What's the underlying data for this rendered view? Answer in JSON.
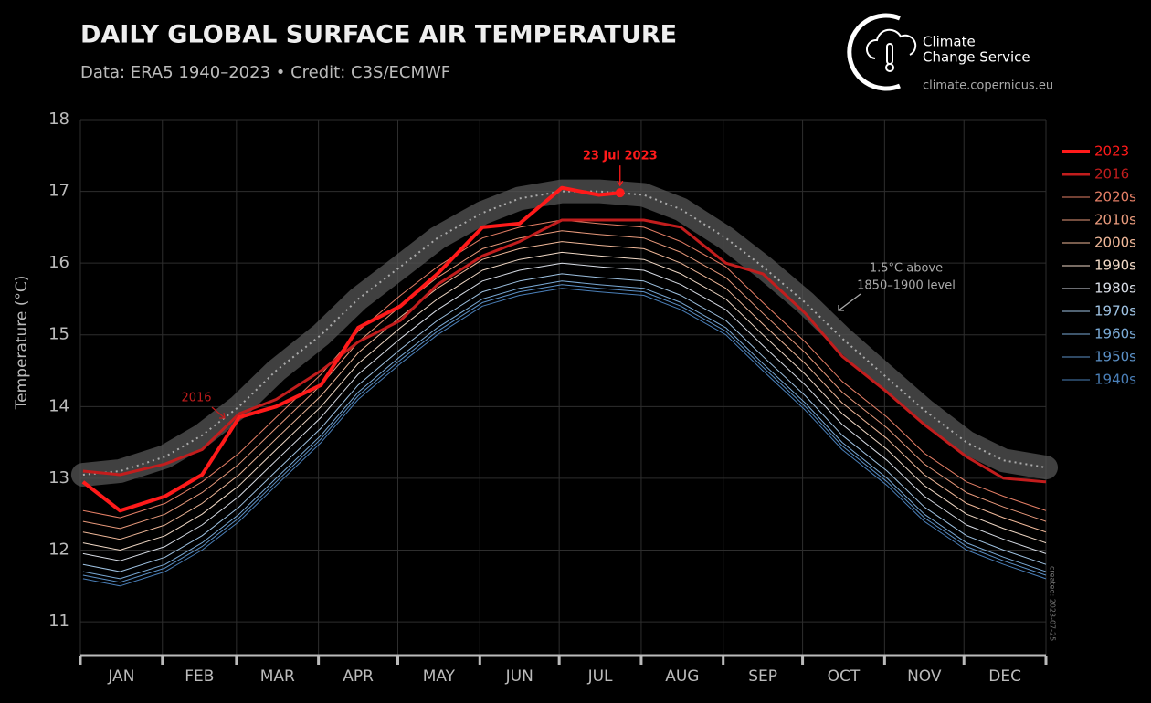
{
  "header": {
    "title": "DAILY GLOBAL SURFACE AIR TEMPERATURE",
    "subtitle": "Data: ERA5 1940–2023 • Credit: C3S/ECMWF",
    "logo_line1": "Climate",
    "logo_line2": "Change Service",
    "url": "climate.copernicus.eu",
    "created": "created: 2023-07-25"
  },
  "chart_data": {
    "type": "line",
    "y_label": "Temperature (°C)",
    "categories": [
      "JAN",
      "FEB",
      "MAR",
      "APR",
      "MAY",
      "JUN",
      "JUL",
      "AUG",
      "SEP",
      "OCT",
      "NOV",
      "DEC"
    ],
    "xlim": [
      0,
      365
    ],
    "xticks": [
      0,
      31,
      59,
      90,
      120,
      151,
      181,
      212,
      243,
      273,
      304,
      334,
      365
    ],
    "ylim": [
      10.53,
      18
    ],
    "yticks": [
      11,
      12,
      13,
      14,
      15,
      16,
      17,
      18
    ],
    "grid": true,
    "x": [
      1,
      15,
      32,
      46,
      60,
      74,
      91,
      105,
      121,
      135,
      152,
      166,
      182,
      196,
      213,
      227,
      244,
      258,
      274,
      288,
      305,
      319,
      335,
      349,
      365
    ],
    "threshold": {
      "label": [
        "1.5°C above",
        "1850–1900 level"
      ],
      "color": "#aaaaaa",
      "values": [
        13.05,
        13.1,
        13.3,
        13.6,
        14.0,
        14.5,
        15.0,
        15.5,
        15.95,
        16.35,
        16.7,
        16.9,
        17.0,
        17.0,
        16.95,
        16.75,
        16.35,
        15.95,
        15.45,
        14.95,
        14.4,
        13.95,
        13.5,
        13.25,
        13.15
      ]
    },
    "annotations": [
      {
        "text": "23 Jul 2023",
        "color": "#ff1a1a"
      },
      {
        "text": "2016",
        "color": "#c21d1d"
      }
    ],
    "series": [
      {
        "name": "2023",
        "color": "#ff1a1a",
        "width": 4,
        "x": [
          1,
          15,
          32,
          46,
          60,
          74,
          91,
          105,
          121,
          135,
          152,
          166,
          182,
          196,
          204
        ],
        "values": [
          12.95,
          12.55,
          12.75,
          13.05,
          13.85,
          14.0,
          14.3,
          15.1,
          15.4,
          15.85,
          16.5,
          16.55,
          17.05,
          16.95,
          16.98
        ]
      },
      {
        "name": "2016",
        "color": "#c21d1d",
        "width": 3,
        "values": [
          13.1,
          13.05,
          13.2,
          13.4,
          13.9,
          14.1,
          14.5,
          14.9,
          15.2,
          15.7,
          16.1,
          16.3,
          16.6,
          16.6,
          16.6,
          16.5,
          16.0,
          15.85,
          15.3,
          14.7,
          14.2,
          13.75,
          13.3,
          13.0,
          12.95
        ]
      },
      {
        "name": "2020s",
        "color": "#e57f66",
        "width": 1,
        "values": [
          12.55,
          12.45,
          12.65,
          12.95,
          13.35,
          13.85,
          14.45,
          15.05,
          15.55,
          15.95,
          16.35,
          16.5,
          16.6,
          16.55,
          16.5,
          16.3,
          15.95,
          15.45,
          14.9,
          14.35,
          13.85,
          13.35,
          12.95,
          12.75,
          12.55
        ]
      },
      {
        "name": "2010s",
        "color": "#e99a7c",
        "width": 1,
        "values": [
          12.4,
          12.3,
          12.5,
          12.8,
          13.2,
          13.7,
          14.3,
          14.9,
          15.4,
          15.8,
          16.2,
          16.35,
          16.45,
          16.4,
          16.35,
          16.15,
          15.8,
          15.3,
          14.75,
          14.2,
          13.7,
          13.2,
          12.8,
          12.6,
          12.4
        ]
      },
      {
        "name": "2000s",
        "color": "#f0b899",
        "width": 1,
        "values": [
          12.25,
          12.15,
          12.35,
          12.65,
          13.05,
          13.55,
          14.15,
          14.75,
          15.25,
          15.65,
          16.05,
          16.2,
          16.3,
          16.25,
          16.2,
          16.0,
          15.65,
          15.15,
          14.6,
          14.05,
          13.55,
          13.05,
          12.65,
          12.45,
          12.25
        ]
      },
      {
        "name": "1990s",
        "color": "#f1d9c6",
        "width": 1,
        "values": [
          12.1,
          12.0,
          12.2,
          12.5,
          12.9,
          13.4,
          14.0,
          14.6,
          15.1,
          15.5,
          15.9,
          16.05,
          16.15,
          16.1,
          16.05,
          15.85,
          15.5,
          15.0,
          14.45,
          13.9,
          13.4,
          12.9,
          12.5,
          12.3,
          12.1
        ]
      },
      {
        "name": "1980s",
        "color": "#d8dde6",
        "width": 1,
        "values": [
          11.95,
          11.85,
          12.05,
          12.35,
          12.75,
          13.25,
          13.85,
          14.45,
          14.95,
          15.35,
          15.75,
          15.9,
          16.0,
          15.95,
          15.9,
          15.7,
          15.35,
          14.85,
          14.3,
          13.75,
          13.25,
          12.75,
          12.35,
          12.15,
          11.95
        ]
      },
      {
        "name": "1970s",
        "color": "#9fc3e3",
        "width": 1,
        "values": [
          11.8,
          11.7,
          11.9,
          12.2,
          12.6,
          13.1,
          13.7,
          14.3,
          14.8,
          15.2,
          15.6,
          15.75,
          15.85,
          15.8,
          15.75,
          15.55,
          15.2,
          14.7,
          14.15,
          13.6,
          13.1,
          12.6,
          12.2,
          12.0,
          11.8
        ]
      },
      {
        "name": "1960s",
        "color": "#7aaad6",
        "width": 1,
        "values": [
          11.7,
          11.6,
          11.8,
          12.1,
          12.5,
          13.0,
          13.6,
          14.2,
          14.7,
          15.1,
          15.5,
          15.65,
          15.75,
          15.7,
          15.65,
          15.45,
          15.1,
          14.6,
          14.05,
          13.5,
          13.0,
          12.5,
          12.1,
          11.9,
          11.7
        ]
      },
      {
        "name": "1950s",
        "color": "#5b90c6",
        "width": 1,
        "values": [
          11.65,
          11.55,
          11.75,
          12.05,
          12.45,
          12.95,
          13.55,
          14.15,
          14.65,
          15.05,
          15.45,
          15.6,
          15.7,
          15.65,
          15.6,
          15.4,
          15.05,
          14.55,
          14.0,
          13.45,
          12.95,
          12.45,
          12.05,
          11.85,
          11.65
        ]
      },
      {
        "name": "1940s",
        "color": "#4a7fb8",
        "width": 1,
        "values": [
          11.6,
          11.5,
          11.7,
          12.0,
          12.4,
          12.9,
          13.5,
          14.1,
          14.6,
          15.0,
          15.4,
          15.55,
          15.65,
          15.6,
          15.55,
          15.35,
          15.0,
          14.5,
          13.95,
          13.4,
          12.9,
          12.4,
          12.0,
          11.8,
          11.6
        ]
      }
    ]
  }
}
